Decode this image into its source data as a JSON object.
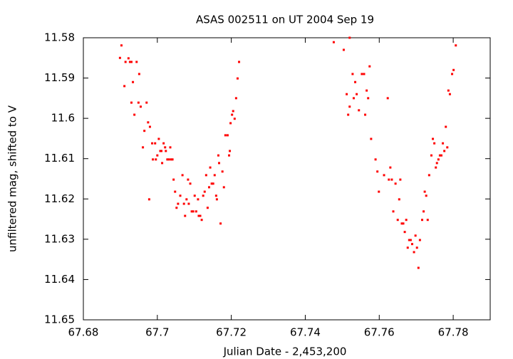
{
  "chart_data": {
    "type": "scatter",
    "title": "ASAS 002511 on UT 2004 Sep 19",
    "xlabel": "Julian Date - 2,453,200",
    "ylabel": "unfiltered mag, shifted to V",
    "color": "#ff0000",
    "xlim": [
      67.68,
      67.79
    ],
    "xticks": [
      67.68,
      67.7,
      67.72,
      67.74,
      67.76,
      67.78
    ],
    "ylim": [
      11.58,
      11.65
    ],
    "y_inverted": true,
    "yticks": [
      11.58,
      11.59,
      11.6,
      11.61,
      11.62,
      11.63,
      11.64,
      11.65
    ],
    "x": [
      67.6899,
      67.6903,
      67.6911,
      67.6914,
      67.6922,
      67.6926,
      67.693,
      67.693,
      67.6934,
      67.6938,
      67.6944,
      67.6949,
      67.6951,
      67.6955,
      67.6961,
      67.6965,
      67.6971,
      67.6975,
      67.6978,
      67.698,
      67.6986,
      67.6988,
      67.6994,
      67.6996,
      67.7,
      67.7004,
      67.7008,
      67.7011,
      67.7013,
      67.7017,
      67.7021,
      67.7023,
      67.7027,
      67.7031,
      67.7035,
      67.7037,
      67.7041,
      67.7044,
      67.7048,
      67.7052,
      67.7056,
      67.7062,
      67.7068,
      67.7072,
      67.7075,
      67.7079,
      67.7083,
      67.7085,
      67.7089,
      67.7093,
      67.7097,
      67.7101,
      67.7105,
      67.711,
      67.7112,
      67.7116,
      67.712,
      67.7124,
      67.7128,
      67.7132,
      67.7136,
      67.714,
      67.7143,
      67.7147,
      67.7151,
      67.7155,
      67.7159,
      67.7161,
      67.7165,
      67.7167,
      67.7171,
      67.7176,
      67.718,
      67.7184,
      67.719,
      67.7194,
      67.7196,
      67.7198,
      67.7202,
      67.7205,
      67.7209,
      67.7213,
      67.7217,
      67.7221,
      67.7477,
      67.7504,
      67.752,
      67.7512,
      67.7516,
      67.752,
      67.7528,
      67.7531,
      67.7535,
      67.7539,
      67.7545,
      67.7553,
      67.7559,
      67.7562,
      67.7566,
      67.757,
      67.7574,
      67.7578,
      67.759,
      67.7595,
      67.7599,
      67.7613,
      67.7623,
      67.7626,
      67.763,
      67.7634,
      67.7638,
      67.7644,
      67.765,
      67.7654,
      67.7657,
      67.7661,
      67.7665,
      67.7669,
      67.7673,
      67.7677,
      67.7681,
      67.7685,
      67.7689,
      67.7694,
      67.7698,
      67.7702,
      67.7706,
      67.771,
      67.7716,
      67.772,
      67.7723,
      67.7727,
      67.7731,
      67.7735,
      67.7741,
      67.7745,
      67.7749,
      67.7753,
      67.7756,
      67.776,
      67.7764,
      67.7768,
      67.7772,
      67.7776,
      67.778,
      67.7784,
      67.7787,
      67.7791,
      67.7797,
      67.7801,
      67.7807
    ],
    "y": [
      11.585,
      11.5819,
      11.592,
      11.586,
      11.5851,
      11.586,
      11.586,
      11.5961,
      11.591,
      11.5991,
      11.586,
      11.5961,
      11.589,
      11.5971,
      11.6072,
      11.6031,
      11.5961,
      11.601,
      11.6201,
      11.6021,
      11.6062,
      11.6102,
      11.6062,
      11.6102,
      11.6092,
      11.6051,
      11.6081,
      11.6081,
      11.6111,
      11.6062,
      11.6072,
      11.6081,
      11.6102,
      11.6102,
      11.6072,
      11.6102,
      11.6102,
      11.6152,
      11.6182,
      11.6222,
      11.6212,
      11.6192,
      11.6141,
      11.6212,
      11.6242,
      11.6201,
      11.6152,
      11.6212,
      11.6162,
      11.6231,
      11.6231,
      11.6192,
      11.6231,
      11.6201,
      11.6242,
      11.6242,
      11.6252,
      11.6192,
      11.6182,
      11.6141,
      11.6222,
      11.6171,
      11.6122,
      11.6162,
      11.6162,
      11.6141,
      11.6192,
      11.6201,
      11.6092,
      11.6111,
      11.6261,
      11.6132,
      11.6171,
      11.6042,
      11.6042,
      11.6092,
      11.6081,
      11.6012,
      11.5991,
      11.5982,
      11.6001,
      11.595,
      11.5901,
      11.586,
      11.5811,
      11.583,
      11.58,
      11.594,
      11.5991,
      11.5971,
      11.589,
      11.595,
      11.591,
      11.594,
      11.598,
      11.589,
      11.589,
      11.5991,
      11.5931,
      11.595,
      11.5871,
      11.6051,
      11.6102,
      11.6132,
      11.6182,
      11.6141,
      11.595,
      11.6152,
      11.6122,
      11.6152,
      11.6231,
      11.6162,
      11.6252,
      11.6201,
      11.6152,
      11.6261,
      11.6261,
      11.6282,
      11.6252,
      11.6321,
      11.6302,
      11.6302,
      11.6312,
      11.6332,
      11.6291,
      11.6321,
      11.6371,
      11.6302,
      11.6252,
      11.6231,
      11.6182,
      11.6192,
      11.6252,
      11.6141,
      11.6092,
      11.6051,
      11.6062,
      11.6122,
      11.6111,
      11.6102,
      11.6092,
      11.6092,
      11.6062,
      11.6081,
      11.6021,
      11.6072,
      11.5931,
      11.594,
      11.589,
      11.588,
      11.5819
    ]
  }
}
